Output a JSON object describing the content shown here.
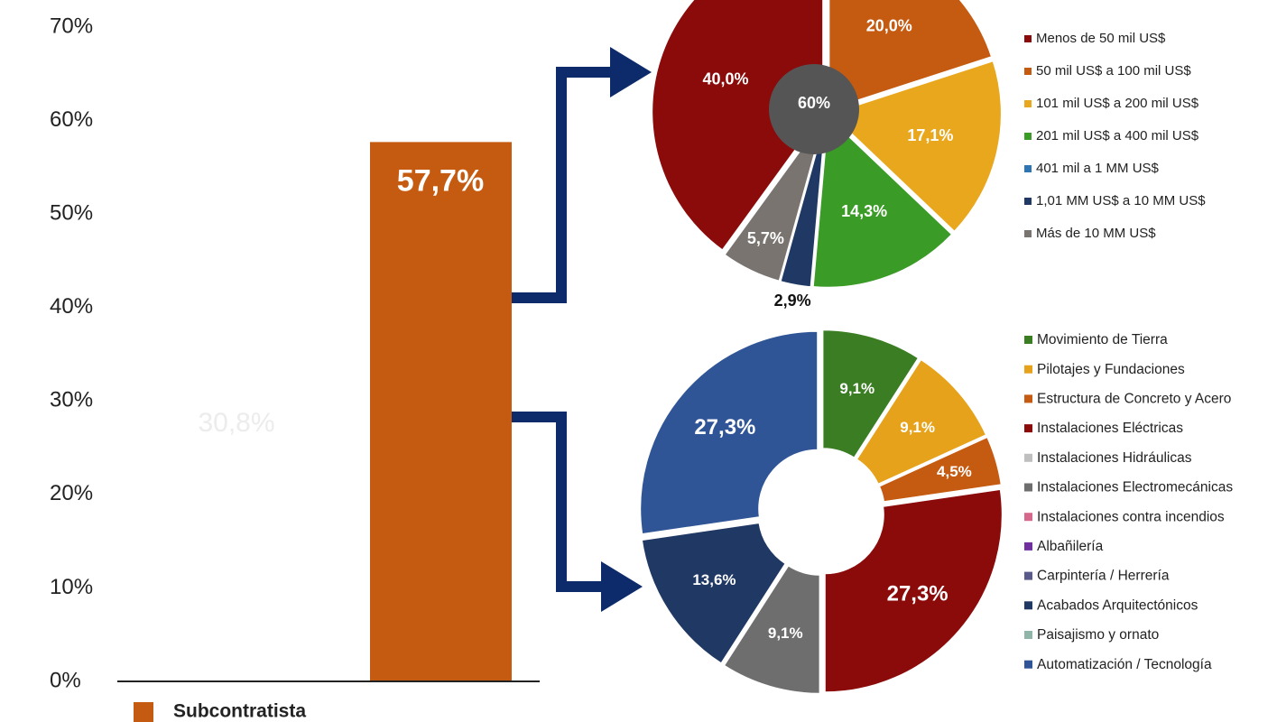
{
  "chart_data": [
    {
      "type": "bar",
      "categories": [
        "Subcontratista"
      ],
      "values": [
        57.7
      ],
      "value_labels": [
        "57,7%"
      ],
      "color": "#c55a11",
      "annotation": "30,8%",
      "ylim": [
        0,
        70
      ],
      "yticks": [
        {
          "value": 0,
          "label": "0%"
        },
        {
          "value": 10,
          "label": "10%"
        },
        {
          "value": 20,
          "label": "20%"
        },
        {
          "value": 30,
          "label": "30%"
        },
        {
          "value": 40,
          "label": "40%"
        },
        {
          "value": 50,
          "label": "50%"
        },
        {
          "value": 60,
          "label": "60%"
        },
        {
          "value": 70,
          "label": "70%"
        }
      ]
    },
    {
      "type": "pie",
      "categories": [
        "Menos de 50 mil US$",
        "50 mil US$ a 100 mil US$",
        "101 mil US$ a 200 mil US$",
        "201 mil US$ a 400 mil US$",
        "401 mil a 1 MM US$",
        "1,01 MM US$ a 10 MM US$",
        "Más de 10 MM US$"
      ],
      "values": [
        40.0,
        20.0,
        17.1,
        14.3,
        0,
        2.9,
        5.7
      ],
      "value_labels": [
        "40,0%",
        "20,0%",
        "17,1%",
        "14,3%",
        null,
        "2,9%",
        "5,7%"
      ],
      "colors": [
        "#8b0a0a",
        "#c55a11",
        "#e9a71e",
        "#3a9b26",
        "#2e75b6",
        "#203864",
        "#7a7470"
      ],
      "center_label": "60%"
    },
    {
      "type": "donut",
      "categories": [
        "Movimiento de Tierra",
        "Pilotajes y Fundaciones",
        "Estructura de Concreto y Acero",
        "Instalaciones Eléctricas",
        "Instalaciones Hidráulicas",
        "Instalaciones Electromecánicas",
        "Instalaciones contra incendios",
        "Albañilería",
        "Carpintería / Herrería",
        "Acabados Arquitectónicos",
        "Paisajismo y ornato",
        "Automatización / Tecnología"
      ],
      "values": [
        9.1,
        9.1,
        4.5,
        27.3,
        0,
        9.1,
        0,
        0,
        0,
        13.6,
        0,
        27.3
      ],
      "value_labels": [
        "9,1%",
        "9,1%",
        "4,5%",
        "27,3%",
        null,
        "9,1%",
        null,
        null,
        null,
        "13,6%",
        null,
        "27,3%"
      ],
      "colors": [
        "#3a7d22",
        "#e6a21a",
        "#c55a11",
        "#8b0a0a",
        "#bfbfbf",
        "#6e6e6e",
        "#d6688c",
        "#7030a0",
        "#5a5a8a",
        "#203864",
        "#8fb4a8",
        "#2f5597"
      ]
    }
  ]
}
